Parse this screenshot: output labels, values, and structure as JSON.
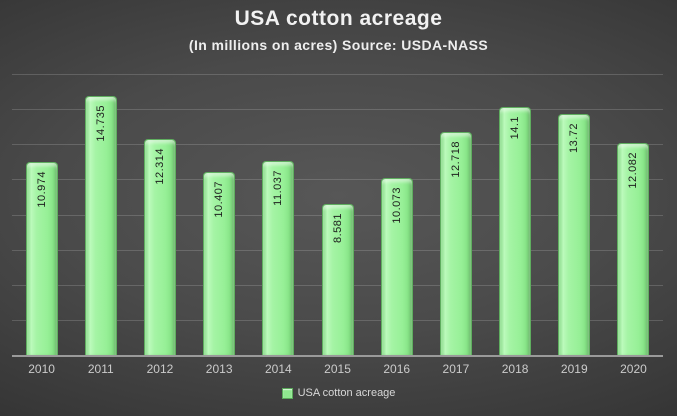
{
  "header": {
    "title": "USA cotton acreage",
    "subtitle": "(In millions on acres) Source: USDA-NASS"
  },
  "legend": {
    "swatch_icon": "legend-swatch-square",
    "label": "USA cotton acreage"
  },
  "colors": {
    "background_center": "#575757",
    "background_edge": "#212121",
    "bar_fill": "#97f097",
    "bar_highlight": "#bcfabc",
    "bar_shadow_edge": "#5fae5f",
    "bar_value_text": "#1d1d1d",
    "gridline": "rgba(255,255,255,0.16)",
    "axis_line": "#9a9a9a",
    "tick_label": "#cbcbcb",
    "title_text": "#f2f2f2"
  },
  "chart_data": {
    "type": "bar",
    "title": "USA cotton acreage",
    "subtitle": "(In millions on acres) Source: USDA-NASS",
    "categories": [
      "2010",
      "2011",
      "2012",
      "2013",
      "2014",
      "2015",
      "2016",
      "2017",
      "2018",
      "2019",
      "2020"
    ],
    "values": [
      10.974,
      14.735,
      12.314,
      10.407,
      11.037,
      8.581,
      10.073,
      12.718,
      14.1,
      13.72,
      12.082
    ],
    "value_labels": [
      "10.974",
      "14.735",
      "12.314",
      "10.407",
      "11.037",
      "8.581",
      "10.073",
      "12.718",
      "14.1",
      "13.72",
      "12.082"
    ],
    "series_name": "USA cotton acreage",
    "xlabel": "",
    "ylabel": "",
    "ylim": [
      0,
      16
    ],
    "gridline_step": 2,
    "grid": true,
    "y_axis_labels_visible": false,
    "value_label_rotation": "vertical-bottom-to-top",
    "legend_position": "bottom-center"
  }
}
